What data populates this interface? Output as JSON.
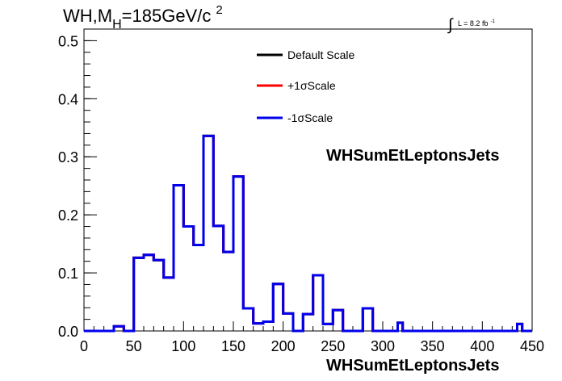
{
  "chart_data": {
    "type": "line",
    "title": {
      "main": "WH,M",
      "sub": "H",
      "rest": "=185GeV/c",
      "sup": "2"
    },
    "lumi": {
      "integral": "∫",
      "text": "L = 8.2 fb",
      "sup": "-1"
    },
    "xlabel": "WHSumEtLeptonsJets",
    "ylabel": "",
    "xlim": [
      0,
      450
    ],
    "ylim": [
      0,
      0.52
    ],
    "x_ticks": [
      0,
      50,
      100,
      150,
      200,
      250,
      300,
      350,
      400,
      450
    ],
    "x_tick_labels": [
      "0",
      "50",
      "100",
      "150",
      "200",
      "250",
      "300",
      "350",
      "400",
      "450"
    ],
    "y_ticks": [
      0.0,
      0.1,
      0.2,
      0.3,
      0.4,
      0.5
    ],
    "y_tick_labels": [
      "0.0",
      "0.1",
      "0.2",
      "0.3",
      "0.4",
      "0.5"
    ],
    "bin_edges": [
      0,
      10,
      20,
      30,
      40,
      50,
      55,
      60,
      65,
      70,
      75,
      80,
      85,
      90,
      95,
      100,
      105,
      110,
      115,
      120,
      125,
      130,
      135,
      140,
      145,
      150,
      155,
      160,
      165,
      170,
      175,
      180,
      185,
      190,
      195,
      200,
      205,
      210,
      215,
      220,
      225,
      230,
      235,
      240,
      245,
      250,
      255,
      260,
      265,
      270,
      275,
      280,
      290,
      300,
      310,
      315,
      320,
      330,
      340,
      350,
      360,
      370,
      380,
      390,
      400,
      410,
      420,
      430,
      435,
      440,
      450
    ],
    "series": [
      {
        "name": "Default Scale",
        "color": "#000000",
        "values": [
          0,
          0,
          0,
          0.008,
          0,
          0.126,
          0.126,
          0.131,
          0.131,
          0.122,
          0.122,
          0.092,
          0.092,
          0.251,
          0.251,
          0.18,
          0.18,
          0.148,
          0.148,
          0.336,
          0.336,
          0.181,
          0.181,
          0.136,
          0.136,
          0.266,
          0.266,
          0.039,
          0.039,
          0.013,
          0.013,
          0.016,
          0.016,
          0.081,
          0.081,
          0.03,
          0.03,
          0,
          0,
          0.029,
          0.029,
          0.096,
          0.096,
          0.012,
          0.012,
          0.036,
          0.036,
          0,
          0,
          0,
          0,
          0.039,
          0,
          0,
          0,
          0.014,
          0,
          0,
          0,
          0,
          0,
          0,
          0,
          0,
          0,
          0,
          0,
          0,
          0.012,
          0
        ]
      },
      {
        "name": "+1σScale",
        "color": "#ff0000",
        "values": [
          0,
          0,
          0,
          0.008,
          0,
          0.126,
          0.126,
          0.131,
          0.131,
          0.122,
          0.122,
          0.092,
          0.092,
          0.251,
          0.251,
          0.18,
          0.18,
          0.148,
          0.148,
          0.336,
          0.336,
          0.181,
          0.181,
          0.136,
          0.136,
          0.266,
          0.266,
          0.039,
          0.039,
          0.013,
          0.013,
          0.016,
          0.016,
          0.081,
          0.081,
          0.03,
          0.03,
          0,
          0,
          0.029,
          0.029,
          0.096,
          0.096,
          0.012,
          0.012,
          0.036,
          0.036,
          0,
          0,
          0,
          0,
          0.039,
          0,
          0,
          0,
          0.014,
          0,
          0,
          0,
          0,
          0,
          0,
          0,
          0,
          0,
          0,
          0,
          0,
          0.012,
          0
        ]
      },
      {
        "name": "-1σScale",
        "color": "#0000ee",
        "values": [
          0,
          0,
          0,
          0.008,
          0,
          0.126,
          0.126,
          0.131,
          0.131,
          0.122,
          0.122,
          0.092,
          0.092,
          0.251,
          0.251,
          0.18,
          0.18,
          0.148,
          0.148,
          0.336,
          0.336,
          0.181,
          0.181,
          0.136,
          0.136,
          0.266,
          0.266,
          0.039,
          0.039,
          0.013,
          0.013,
          0.016,
          0.016,
          0.081,
          0.081,
          0.03,
          0.03,
          0,
          0,
          0.029,
          0.029,
          0.096,
          0.096,
          0.012,
          0.012,
          0.036,
          0.036,
          0,
          0,
          0,
          0,
          0.039,
          0,
          0,
          0,
          0.014,
          0,
          0,
          0,
          0,
          0,
          0,
          0,
          0,
          0,
          0,
          0,
          0,
          0.012,
          0
        ]
      }
    ],
    "legend_position": "top-right",
    "grid": false
  }
}
